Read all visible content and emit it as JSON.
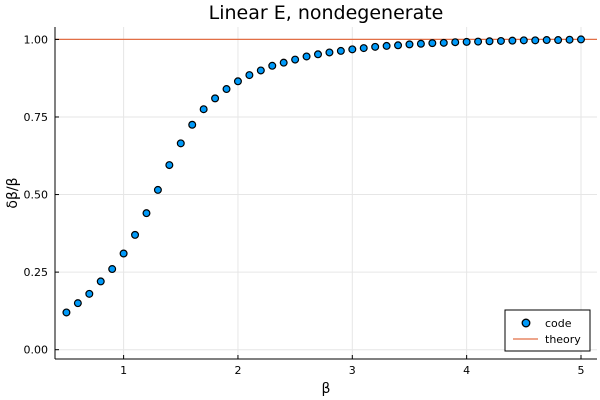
{
  "chart_data": {
    "type": "scatter",
    "title": "Linear E, nondegenerate",
    "xlabel": "β",
    "ylabel": "δβ/β",
    "xlim": [
      0.4,
      5.14
    ],
    "ylim": [
      -0.03,
      1.04
    ],
    "xticks": [
      1,
      2,
      3,
      4,
      5
    ],
    "xtick_labels": [
      "1",
      "2",
      "3",
      "4",
      "5"
    ],
    "yticks": [
      0.0,
      0.25,
      0.5,
      0.75,
      1.0
    ],
    "ytick_labels": [
      "0.00",
      "0.25",
      "0.50",
      "0.75",
      "1.00"
    ],
    "grid": true,
    "legend_position": "bottom-right",
    "series": [
      {
        "name": "code",
        "kind": "scatter",
        "color": "#009af9",
        "x": [
          0.5,
          0.6,
          0.7,
          0.8,
          0.9,
          1.0,
          1.1,
          1.2,
          1.3,
          1.4,
          1.5,
          1.6,
          1.7,
          1.8,
          1.9,
          2.0,
          2.1,
          2.2,
          2.3,
          2.4,
          2.5,
          2.6,
          2.7,
          2.8,
          2.9,
          3.0,
          3.1,
          3.2,
          3.3,
          3.4,
          3.5,
          3.6,
          3.7,
          3.8,
          3.9,
          4.0,
          4.1,
          4.2,
          4.3,
          4.4,
          4.5,
          4.6,
          4.7,
          4.8,
          4.9,
          5.0
        ],
        "y": [
          0.12,
          0.15,
          0.18,
          0.22,
          0.26,
          0.31,
          0.37,
          0.44,
          0.515,
          0.595,
          0.665,
          0.725,
          0.775,
          0.81,
          0.84,
          0.865,
          0.885,
          0.9,
          0.915,
          0.925,
          0.935,
          0.945,
          0.952,
          0.958,
          0.963,
          0.968,
          0.972,
          0.976,
          0.979,
          0.981,
          0.984,
          0.986,
          0.988,
          0.989,
          0.991,
          0.992,
          0.993,
          0.994,
          0.995,
          0.996,
          0.997,
          0.997,
          0.998,
          0.998,
          0.999,
          1.0
        ]
      },
      {
        "name": "theory",
        "kind": "line",
        "color": "#e26f46",
        "y_constant": 1.0
      }
    ]
  }
}
